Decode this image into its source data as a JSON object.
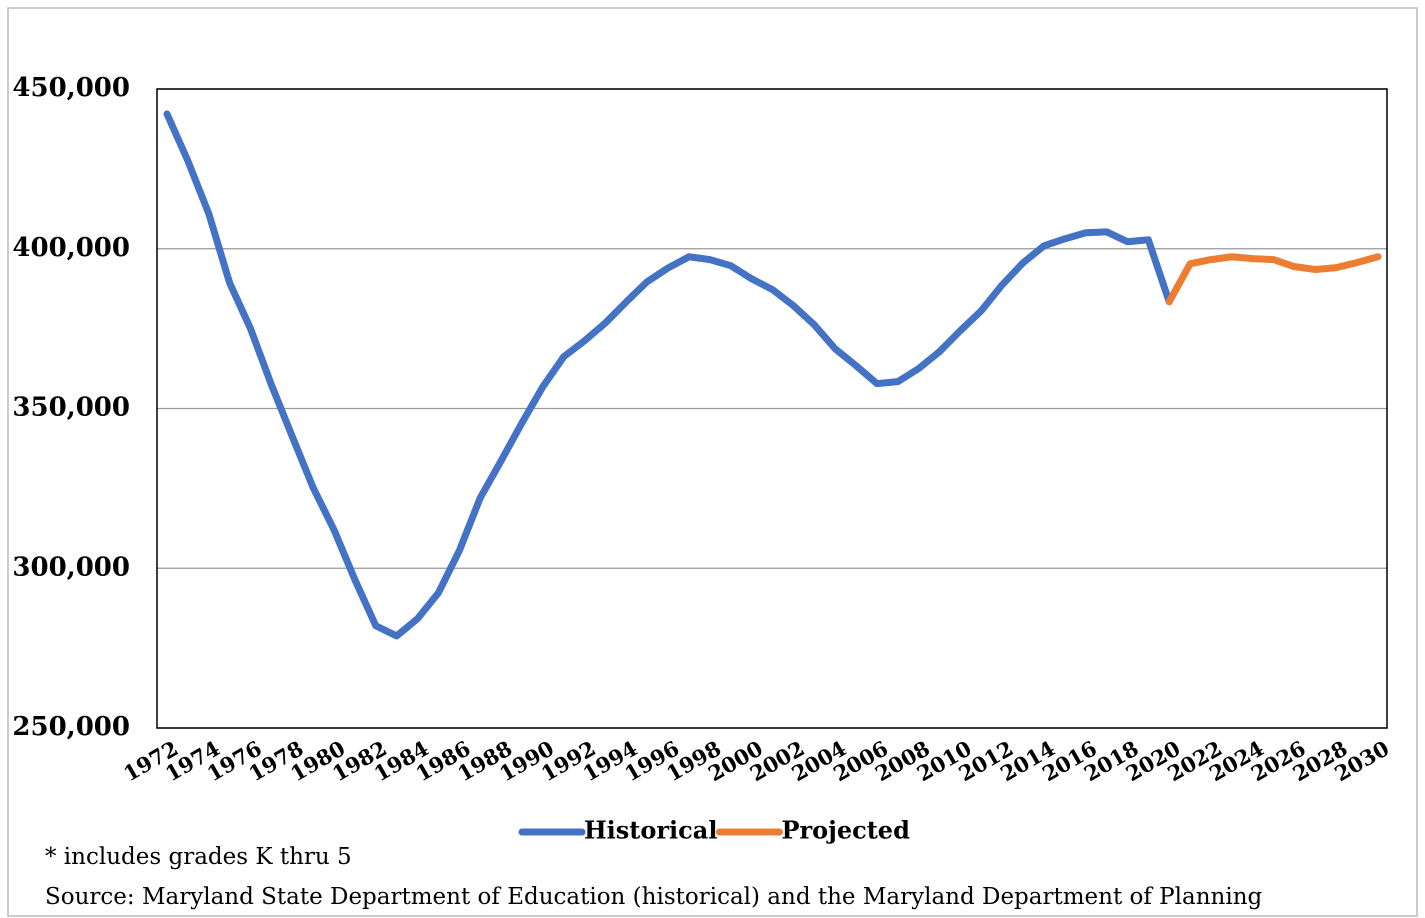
{
  "chart_data": {
    "type": "line",
    "x": [
      1972,
      1973,
      1974,
      1975,
      1976,
      1977,
      1978,
      1979,
      1980,
      1981,
      1982,
      1983,
      1984,
      1985,
      1986,
      1987,
      1988,
      1989,
      1990,
      1991,
      1992,
      1993,
      1994,
      1995,
      1996,
      1997,
      1998,
      1999,
      2000,
      2001,
      2002,
      2003,
      2004,
      2005,
      2006,
      2007,
      2008,
      2009,
      2010,
      2011,
      2012,
      2013,
      2014,
      2015,
      2016,
      2017,
      2018,
      2019,
      2020,
      2021,
      2022,
      2023,
      2024,
      2025,
      2026,
      2027,
      2028,
      2029,
      2030
    ],
    "series": [
      {
        "name": "Historical",
        "color": "#4472c4",
        "values": [
          442200,
          427500,
          411000,
          389300,
          375000,
          357400,
          341200,
          325200,
          312000,
          296400,
          282000,
          278800,
          284200,
          292300,
          305500,
          322000,
          333600,
          345500,
          356800,
          366200,
          371200,
          376800,
          383400,
          389700,
          394000,
          397500,
          396600,
          394700,
          390600,
          387200,
          382200,
          376200,
          368700,
          363400,
          357800,
          358400,
          362500,
          367800,
          374400,
          380600,
          388700,
          395600,
          400900,
          403100,
          405000,
          405300,
          402200,
          402800,
          383400,
          null,
          null,
          null,
          null,
          null,
          null,
          null,
          null,
          null,
          null
        ]
      },
      {
        "name": "Projected",
        "color": "#ed7d31",
        "values": [
          null,
          null,
          null,
          null,
          null,
          null,
          null,
          null,
          null,
          null,
          null,
          null,
          null,
          null,
          null,
          null,
          null,
          null,
          null,
          null,
          null,
          null,
          null,
          null,
          null,
          null,
          null,
          null,
          null,
          null,
          null,
          null,
          null,
          null,
          null,
          null,
          null,
          null,
          null,
          null,
          null,
          null,
          null,
          null,
          null,
          null,
          null,
          null,
          383400,
          395300,
          396600,
          397500,
          396900,
          396600,
          394400,
          393500,
          394100,
          395700,
          397500
        ]
      }
    ],
    "xlim": [
      1972,
      2030
    ],
    "xticks": [
      1972,
      1974,
      1976,
      1978,
      1980,
      1982,
      1984,
      1986,
      1988,
      1990,
      1992,
      1994,
      1996,
      1998,
      2000,
      2002,
      2004,
      2006,
      2008,
      2010,
      2012,
      2014,
      2016,
      2018,
      2020,
      2022,
      2024,
      2026,
      2028,
      2030
    ],
    "ylim": [
      250000,
      450000
    ],
    "yticks": [
      {
        "value": 250000,
        "label": "250,000"
      },
      {
        "value": 300000,
        "label": "300,000"
      },
      {
        "value": 350000,
        "label": "350,000"
      },
      {
        "value": 400000,
        "label": "400,000"
      },
      {
        "value": 450000,
        "label": "450,000"
      }
    ],
    "grid": true,
    "notes": [
      "* includes grades K thru 5",
      "Source: Maryland State Department of Education (historical) and the Maryland Department of Planning"
    ]
  }
}
